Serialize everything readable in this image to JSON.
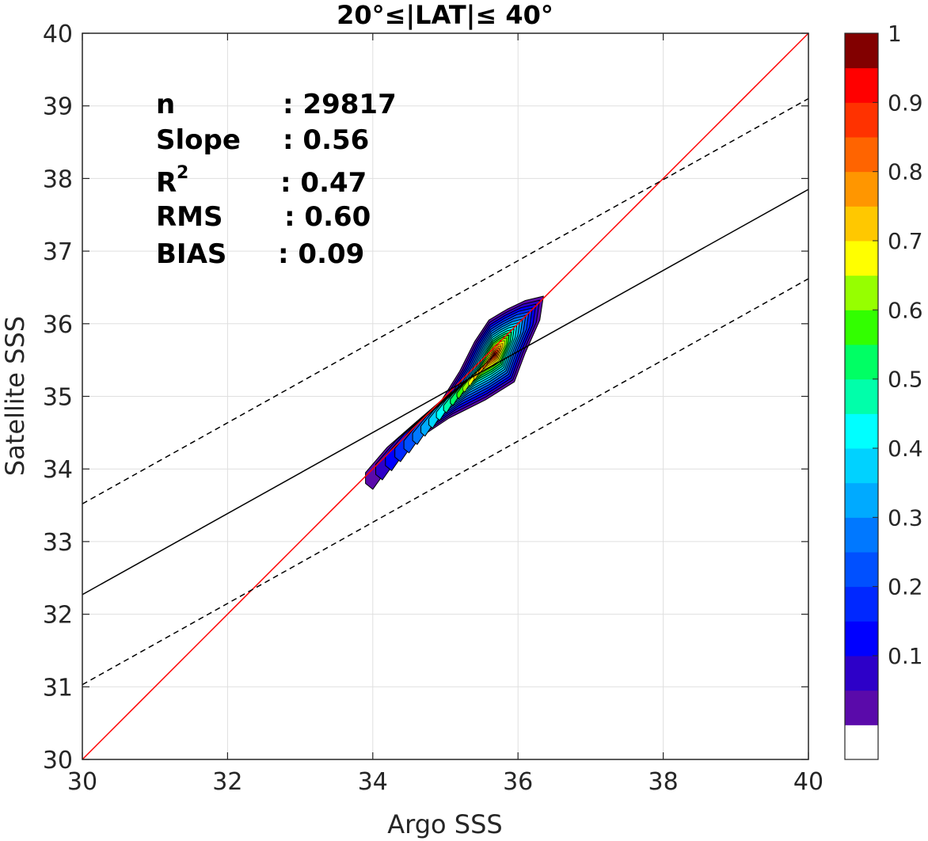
{
  "chart_data": {
    "type": "contour",
    "title": "20°≤|LAT|≤ 40°",
    "xlabel": "Argo SSS",
    "ylabel": "Satellite SSS",
    "xlim": [
      30,
      40
    ],
    "ylim": [
      30,
      40
    ],
    "xticks": [
      "30",
      "32",
      "34",
      "36",
      "38",
      "40"
    ],
    "yticks": [
      "30",
      "31",
      "32",
      "33",
      "34",
      "35",
      "36",
      "37",
      "38",
      "39",
      "40"
    ],
    "grid": true,
    "stats": [
      {
        "label": "n",
        "value": ": 29817"
      },
      {
        "label": "Slope",
        "value": ": 0.56"
      },
      {
        "label": "R",
        "sup": "2",
        "value": ": 0.47"
      },
      {
        "label": "RMS",
        "value": ": 0.60"
      },
      {
        "label": "BIAS",
        "value": ": 0.09"
      }
    ],
    "lines": [
      {
        "role": "one-to-one",
        "color": "#ff0000",
        "dash": false,
        "x": [
          30,
          40
        ],
        "y": [
          30,
          40
        ]
      },
      {
        "role": "regression",
        "color": "#000000",
        "dash": false,
        "x": [
          30,
          40
        ],
        "y": [
          32.27,
          37.85
        ]
      },
      {
        "role": "upper-bound",
        "color": "#000000",
        "dash": true,
        "x": [
          30,
          40
        ],
        "y": [
          33.52,
          39.1
        ]
      },
      {
        "role": "lower-bound",
        "color": "#000000",
        "dash": true,
        "x": [
          30,
          40
        ],
        "y": [
          31.03,
          36.62
        ]
      }
    ],
    "density": {
      "center": [
        35.68,
        35.58
      ],
      "peak": 1.0
    },
    "colorbar": {
      "ticks": [
        "0.1",
        "0.2",
        "0.3",
        "0.4",
        "0.5",
        "0.6",
        "0.7",
        "0.8",
        "0.9",
        "1"
      ],
      "range": [
        0,
        1
      ],
      "levels": 20,
      "colors": [
        "#ffffff",
        "#5a0aaa",
        "#2d00c8",
        "#0000ff",
        "#0028ff",
        "#0050ff",
        "#0078ff",
        "#00aaff",
        "#00d2ff",
        "#00ffff",
        "#00ffaa",
        "#00ff64",
        "#32ff00",
        "#96ff00",
        "#ffff00",
        "#ffc800",
        "#ff9600",
        "#ff6400",
        "#ff3200",
        "#ff0000",
        "#c80000",
        "#820000"
      ]
    }
  }
}
